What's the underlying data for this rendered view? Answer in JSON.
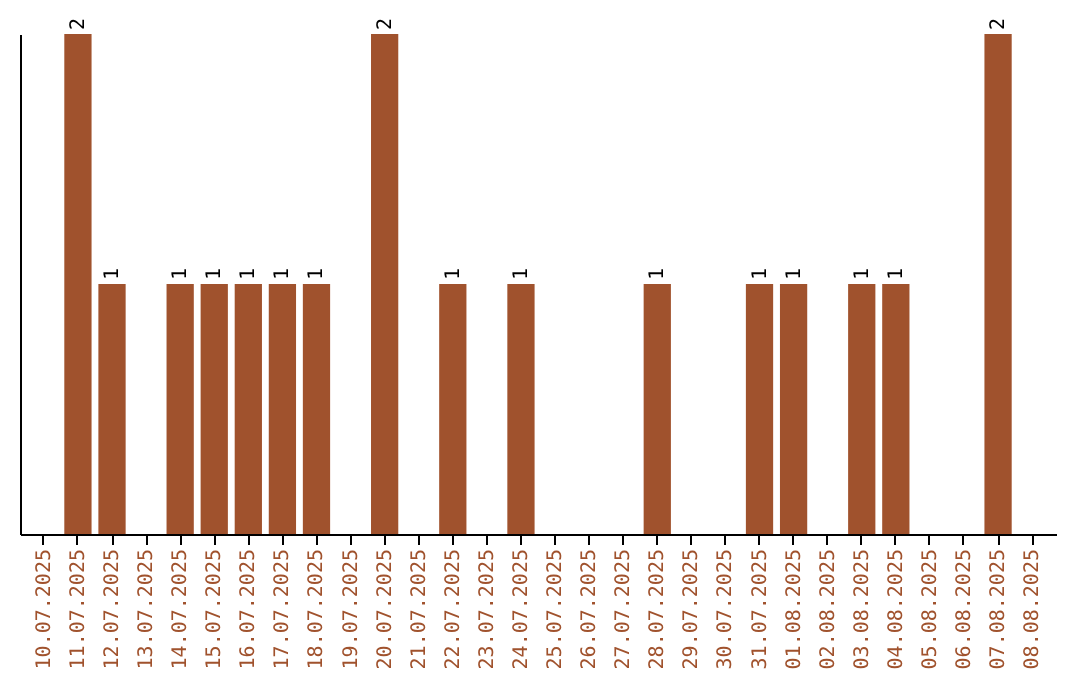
{
  "chart_data": {
    "type": "bar",
    "categories": [
      "10.07.2025",
      "11.07.2025",
      "12.07.2025",
      "13.07.2025",
      "14.07.2025",
      "15.07.2025",
      "16.07.2025",
      "17.07.2025",
      "18.07.2025",
      "19.07.2025",
      "20.07.2025",
      "21.07.2025",
      "22.07.2025",
      "23.07.2025",
      "24.07.2025",
      "25.07.2025",
      "26.07.2025",
      "27.07.2025",
      "28.07.2025",
      "29.07.2025",
      "30.07.2025",
      "31.07.2025",
      "01.08.2025",
      "02.08.2025",
      "03.08.2025",
      "04.08.2025",
      "05.08.2025",
      "06.08.2025",
      "07.08.2025",
      "08.08.2025"
    ],
    "values": [
      0,
      2,
      1,
      0,
      1,
      1,
      1,
      1,
      1,
      0,
      2,
      0,
      1,
      0,
      1,
      0,
      0,
      0,
      1,
      0,
      0,
      1,
      1,
      0,
      1,
      1,
      0,
      0,
      2,
      0
    ],
    "value_labels": [
      null,
      "2",
      "1",
      null,
      "1",
      "1",
      "1",
      "1",
      "1",
      null,
      "2",
      null,
      "1",
      null,
      "1",
      null,
      null,
      null,
      "1",
      null,
      null,
      "1",
      "1",
      null,
      "1",
      "1",
      null,
      null,
      "2",
      null
    ],
    "color": "#a0522d",
    "tick_labels": "x",
    "grid": false
  }
}
